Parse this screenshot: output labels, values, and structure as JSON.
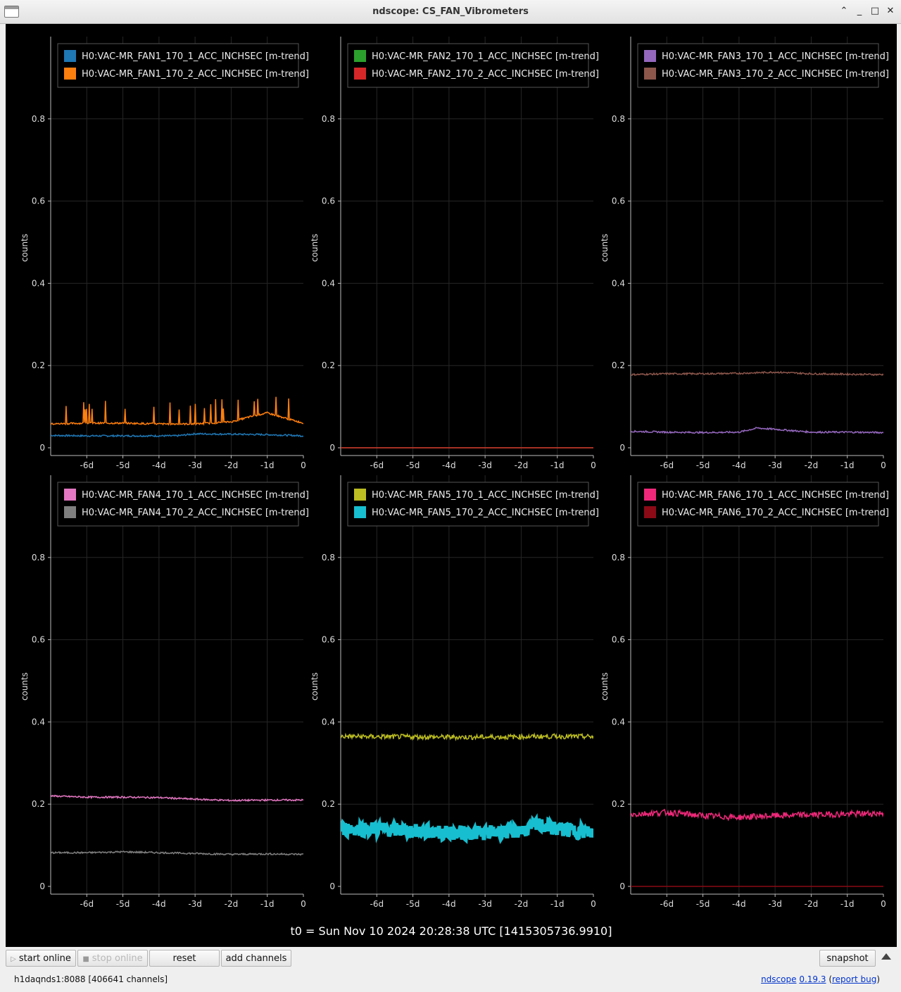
{
  "window": {
    "title": "ndscope: CS_FAN_Vibrometers"
  },
  "t0_label": "t0 = Sun Nov 10 2024 20:28:38 UTC [1415305736.9910]",
  "toolbar": {
    "start_online": "start online",
    "stop_online": "stop online",
    "reset": "reset",
    "add_channels": "add channels",
    "snapshot": "snapshot"
  },
  "status": {
    "server": "h1daqnds1:8088  [406641 channels]",
    "app_name": "ndscope",
    "version": "0.19.3",
    "report_bug": "report bug"
  },
  "chart_data": [
    {
      "type": "line",
      "ylabel": "counts",
      "ylim": [
        0,
        1
      ],
      "xlim": [
        -7,
        0
      ],
      "xticks": [
        "-6d",
        "-5d",
        "-4d",
        "-3d",
        "-2d",
        "-1d",
        "0"
      ],
      "yticks": [
        "0",
        "0.2",
        "0.4",
        "0.6",
        "0.8"
      ],
      "series": [
        {
          "name": "H0:VAC-MR_FAN1_170_1_ACC_INCHSEC [m-trend]",
          "color": "#1f77b4",
          "x": [
            -7,
            -6,
            -5,
            -4,
            -3.5,
            -3,
            -2,
            -1,
            0
          ],
          "y": [
            0.03,
            0.029,
            0.029,
            0.029,
            0.029,
            0.034,
            0.033,
            0.032,
            0.029
          ]
        },
        {
          "name": "H0:VAC-MR_FAN1_170_2_ACC_INCHSEC [m-trend]",
          "color": "#ff7f0e",
          "x": [
            -7,
            -6,
            -5,
            -4,
            -3,
            -2,
            -1.5,
            -1,
            -0.5,
            0
          ],
          "y": [
            0.058,
            0.06,
            0.06,
            0.058,
            0.058,
            0.063,
            0.075,
            0.085,
            0.072,
            0.06
          ]
        }
      ]
    },
    {
      "type": "line",
      "ylabel": "counts",
      "ylim": [
        0,
        1
      ],
      "xlim": [
        -7,
        0
      ],
      "xticks": [
        "-6d",
        "-5d",
        "-4d",
        "-3d",
        "-2d",
        "-1d",
        "0"
      ],
      "yticks": [
        "0",
        "0.2",
        "0.4",
        "0.6",
        "0.8"
      ],
      "series": [
        {
          "name": "H0:VAC-MR_FAN2_170_1_ACC_INCHSEC [m-trend]",
          "color": "#2ca02c",
          "x": [
            -7,
            0
          ],
          "y": [
            0,
            0
          ]
        },
        {
          "name": "H0:VAC-MR_FAN2_170_2_ACC_INCHSEC [m-trend]",
          "color": "#d62728",
          "x": [
            -7,
            0
          ],
          "y": [
            0,
            0
          ]
        }
      ]
    },
    {
      "type": "line",
      "ylabel": "counts",
      "ylim": [
        0,
        1
      ],
      "xlim": [
        -7,
        0
      ],
      "xticks": [
        "-6d",
        "-5d",
        "-4d",
        "-3d",
        "-2d",
        "-1d",
        "0"
      ],
      "yticks": [
        "0",
        "0.2",
        "0.4",
        "0.6",
        "0.8"
      ],
      "series": [
        {
          "name": "H0:VAC-MR_FAN3_170_1_ACC_INCHSEC [m-trend]",
          "color": "#9467bd",
          "x": [
            -7,
            -6,
            -5,
            -4,
            -3.5,
            -3,
            -2,
            -1,
            0
          ],
          "y": [
            0.04,
            0.038,
            0.037,
            0.038,
            0.048,
            0.045,
            0.038,
            0.038,
            0.037
          ]
        },
        {
          "name": "H0:VAC-MR_FAN3_170_2_ACC_INCHSEC [m-trend]",
          "color": "#8c564b",
          "x": [
            -7,
            -6,
            -5,
            -4,
            -3,
            -2,
            -1,
            0
          ],
          "y": [
            0.178,
            0.18,
            0.18,
            0.181,
            0.184,
            0.18,
            0.179,
            0.178
          ]
        }
      ]
    },
    {
      "type": "line",
      "ylabel": "counts",
      "ylim": [
        0,
        1
      ],
      "xlim": [
        -7,
        0
      ],
      "xticks": [
        "-6d",
        "-5d",
        "-4d",
        "-3d",
        "-2d",
        "-1d",
        "0"
      ],
      "yticks": [
        "0",
        "0.2",
        "0.4",
        "0.6",
        "0.8"
      ],
      "series": [
        {
          "name": "H0:VAC-MR_FAN4_170_1_ACC_INCHSEC [m-trend]",
          "color": "#e377c2",
          "x": [
            -7,
            -6,
            -5,
            -4,
            -3,
            -2,
            -1,
            0
          ],
          "y": [
            0.22,
            0.217,
            0.217,
            0.216,
            0.212,
            0.209,
            0.21,
            0.21
          ]
        },
        {
          "name": "H0:VAC-MR_FAN4_170_2_ACC_INCHSEC [m-trend]",
          "color": "#7f7f7f",
          "x": [
            -7,
            -6,
            -5,
            -4,
            -3,
            -2,
            -1,
            0
          ],
          "y": [
            0.082,
            0.082,
            0.084,
            0.082,
            0.08,
            0.078,
            0.079,
            0.078
          ]
        }
      ]
    },
    {
      "type": "line",
      "ylabel": "counts",
      "ylim": [
        0,
        1
      ],
      "xlim": [
        -7,
        0
      ],
      "xticks": [
        "-6d",
        "-5d",
        "-4d",
        "-3d",
        "-2d",
        "-1d",
        "0"
      ],
      "yticks": [
        "0",
        "0.2",
        "0.4",
        "0.6",
        "0.8"
      ],
      "series": [
        {
          "name": "H0:VAC-MR_FAN5_170_1_ACC_INCHSEC [m-trend]",
          "color": "#bcbd22",
          "x": [
            -7,
            -6,
            -5,
            -4,
            -3,
            -2,
            -1,
            0
          ],
          "y": [
            0.365,
            0.364,
            0.364,
            0.363,
            0.363,
            0.364,
            0.365,
            0.364
          ]
        },
        {
          "name": "H0:VAC-MR_FAN5_170_2_ACC_INCHSEC [m-trend]",
          "color": "#17becf",
          "x": [
            -7,
            -6,
            -5,
            -4,
            -3,
            -2,
            -1.5,
            -1,
            0
          ],
          "y": [
            0.14,
            0.14,
            0.135,
            0.13,
            0.13,
            0.135,
            0.15,
            0.14,
            0.13
          ]
        }
      ]
    },
    {
      "type": "line",
      "ylabel": "counts",
      "ylim": [
        0,
        1
      ],
      "xlim": [
        -7,
        0
      ],
      "xticks": [
        "-6d",
        "-5d",
        "-4d",
        "-3d",
        "-2d",
        "-1d",
        "0"
      ],
      "yticks": [
        "0",
        "0.2",
        "0.4",
        "0.6",
        "0.8"
      ],
      "series": [
        {
          "name": "H0:VAC-MR_FAN6_170_1_ACC_INCHSEC [m-trend]",
          "color": "#f0287a",
          "x": [
            -7,
            -6,
            -5,
            -4,
            -3,
            -2,
            -1,
            0
          ],
          "y": [
            0.175,
            0.18,
            0.172,
            0.168,
            0.172,
            0.174,
            0.176,
            0.178
          ]
        },
        {
          "name": "H0:VAC-MR_FAN6_170_2_ACC_INCHSEC [m-trend]",
          "color": "#8b0a16",
          "x": [
            -7,
            0
          ],
          "y": [
            0,
            0
          ]
        }
      ]
    }
  ]
}
